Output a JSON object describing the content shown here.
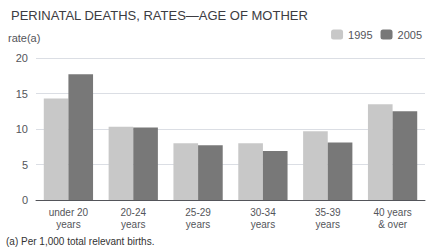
{
  "chart_data": {
    "type": "bar",
    "title": "PERINATAL DEATHS, RATES—AGE OF MOTHER",
    "ylabel": "rate(a)",
    "annotations": [
      "(a) Per 1,000 total relevant births."
    ],
    "categories": [
      "under 20\nyears",
      "20-24\nyears",
      "25-29\nyears",
      "30-34\nyears",
      "35-39\nyears",
      "40 years\n& over"
    ],
    "series": [
      {
        "name": "1995",
        "color": "#c8c8c8",
        "values": [
          14.3,
          10.3,
          8.0,
          8.0,
          9.7,
          13.5
        ]
      },
      {
        "name": "2005",
        "color": "#787878",
        "values": [
          17.7,
          10.2,
          7.7,
          6.9,
          8.1,
          12.5
        ]
      }
    ],
    "ylim": [
      0,
      20
    ],
    "yticks": [
      0,
      5,
      10,
      15,
      20
    ],
    "grid": true,
    "legend": "upper right"
  }
}
